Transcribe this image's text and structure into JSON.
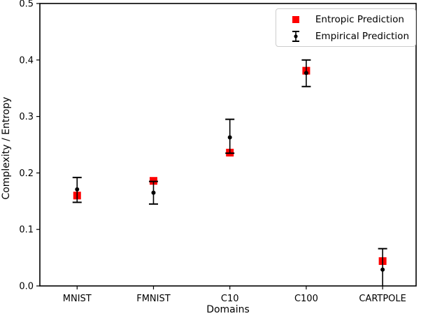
{
  "chart_data": {
    "type": "scatter",
    "title": "",
    "xlabel": "Domains",
    "ylabel": "Complexity / Entropy",
    "categories": [
      "MNIST",
      "FMNIST",
      "C10",
      "C100",
      "CARTPOLE"
    ],
    "ylim": [
      0.0,
      0.5
    ],
    "yticks": [
      "0.0",
      "0.1",
      "0.2",
      "0.3",
      "0.4",
      "0.5"
    ],
    "grid": false,
    "legend_position": "upper right",
    "series": [
      {
        "name": "Entropic Prediction",
        "marker": "square",
        "color": "#ff0000",
        "values": [
          0.16,
          0.186,
          0.236,
          0.381,
          0.044
        ]
      },
      {
        "name": "Empirical Prediction",
        "marker": "point-with-errorbar",
        "color": "#000000",
        "values": [
          0.171,
          0.165,
          0.263,
          0.377,
          0.029
        ],
        "error_low": [
          0.148,
          0.145,
          0.235,
          0.353,
          -0.005
        ],
        "error_high": [
          0.192,
          0.185,
          0.295,
          0.4,
          0.066
        ]
      }
    ]
  }
}
